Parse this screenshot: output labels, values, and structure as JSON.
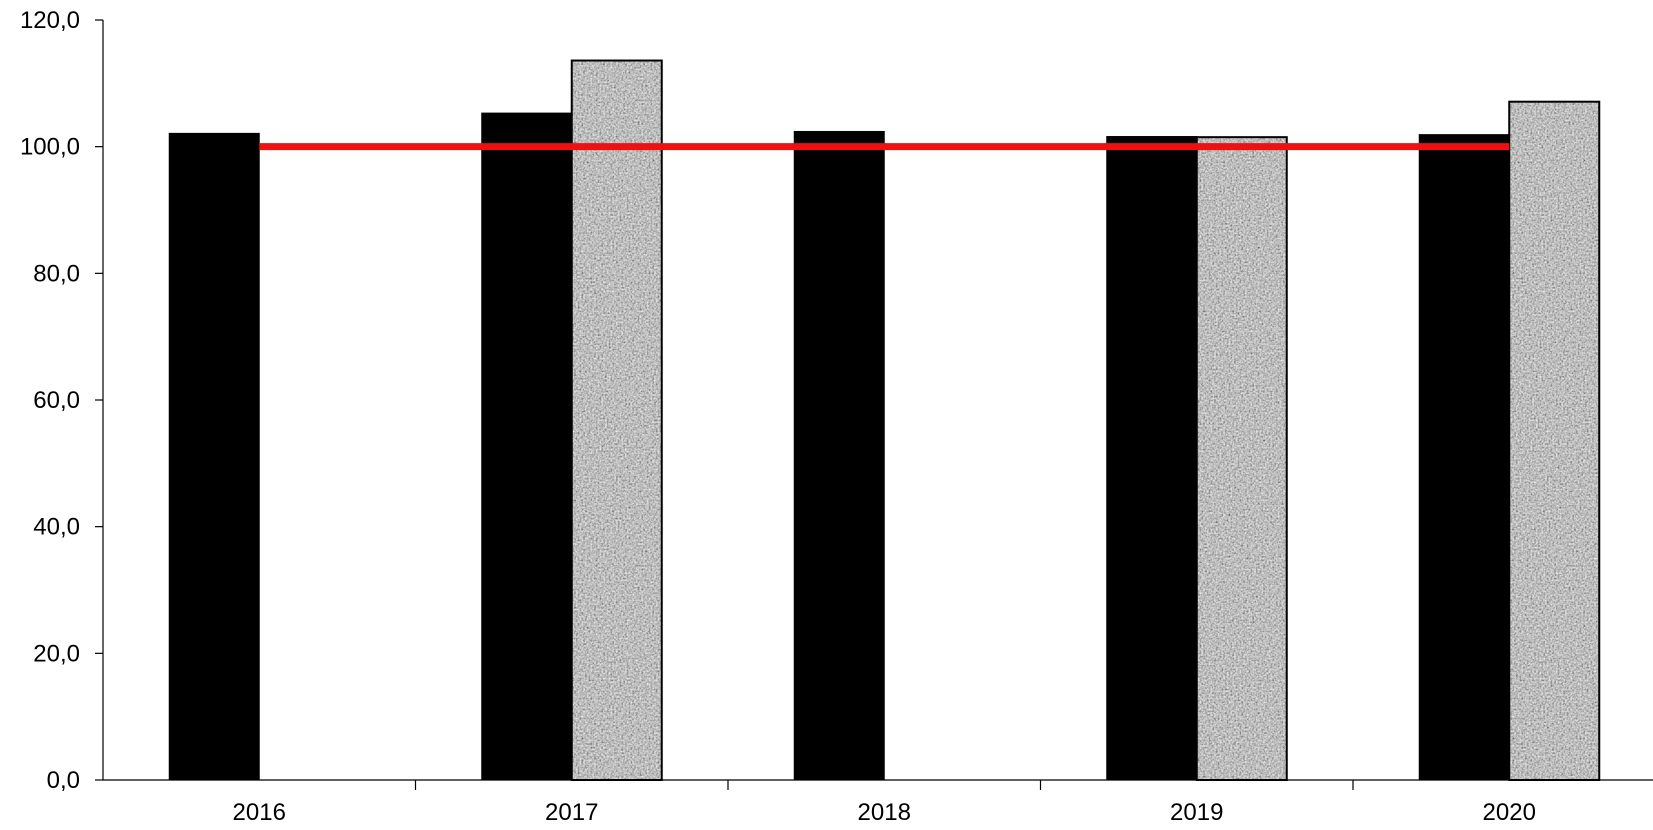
{
  "chart_data": {
    "type": "bar",
    "categories": [
      "2016",
      "2017",
      "2018",
      "2019",
      "2020"
    ],
    "y_ticks": [
      "0,0",
      "20,0",
      "40,0",
      "60,0",
      "80,0",
      "100,0",
      "120,0"
    ],
    "ylim": [
      0,
      120
    ],
    "grid": false,
    "series": [
      {
        "values": [
          102.1,
          105.3,
          102.4,
          101.6,
          101.9
        ],
        "color": "#000000",
        "pattern": "solid"
      },
      {
        "values": [
          null,
          113.6,
          null,
          101.5,
          107.1
        ],
        "color": "#9a9a9a",
        "pattern": "granite"
      }
    ],
    "reference_line": {
      "value": 100.0,
      "color": "#ee1111"
    }
  }
}
